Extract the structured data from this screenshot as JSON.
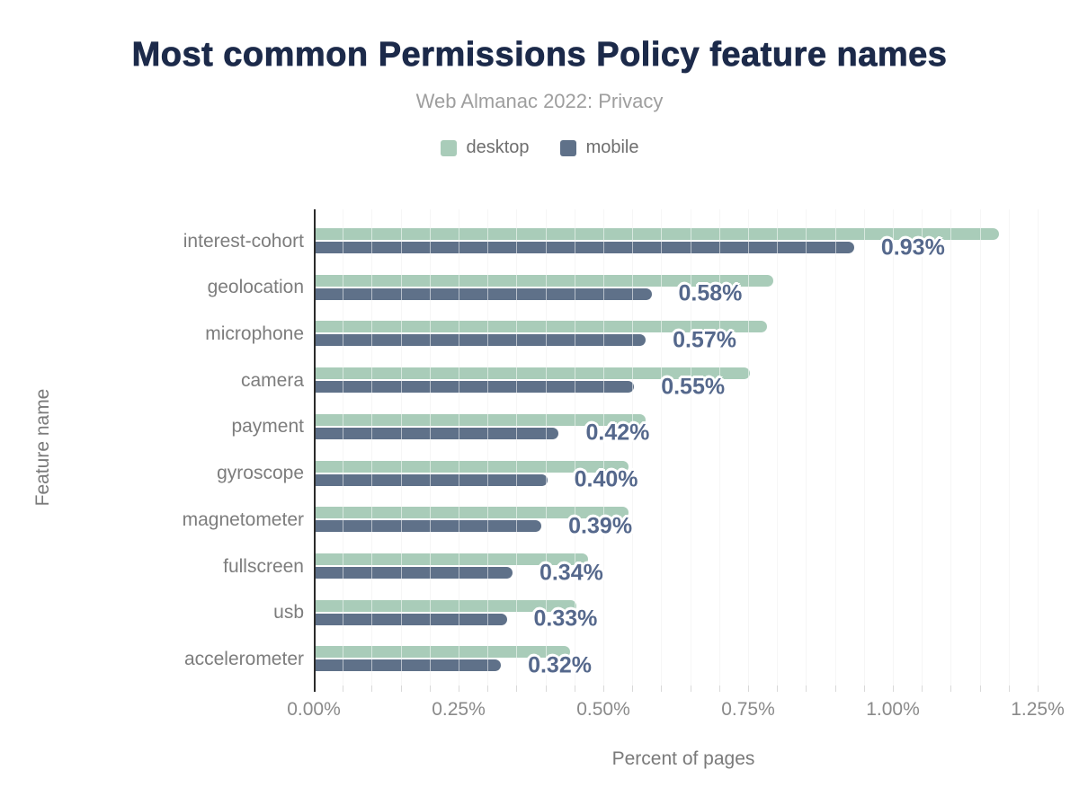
{
  "chart": {
    "title": "Most common Permissions Policy feature names",
    "subtitle": "Web Almanac 2022: Privacy",
    "xlabel": "Percent of pages",
    "ylabel": "Feature name"
  },
  "chart_data": {
    "type": "bar",
    "orientation": "horizontal",
    "title": "Most common Permissions Policy feature names",
    "subtitle": "Web Almanac 2022: Privacy",
    "xlabel": "Percent of pages",
    "ylabel": "Feature name",
    "categories": [
      "interest-cohort",
      "geolocation",
      "microphone",
      "camera",
      "payment",
      "gyroscope",
      "magnetometer",
      "fullscreen",
      "usb",
      "accelerometer"
    ],
    "series": [
      {
        "name": "desktop",
        "color": "#a9ccb9",
        "values": [
          1.18,
          0.79,
          0.78,
          0.75,
          0.57,
          0.54,
          0.54,
          0.47,
          0.45,
          0.44
        ]
      },
      {
        "name": "mobile",
        "color": "#5f7189",
        "values": [
          0.93,
          0.58,
          0.57,
          0.55,
          0.42,
          0.4,
          0.39,
          0.34,
          0.33,
          0.32
        ]
      }
    ],
    "data_labels": [
      "0.93%",
      "0.58%",
      "0.57%",
      "0.55%",
      "0.42%",
      "0.40%",
      "0.39%",
      "0.34%",
      "0.33%",
      "0.32%"
    ],
    "data_labels_series": "mobile",
    "x_ticks": [
      "0.00%",
      "0.25%",
      "0.50%",
      "0.75%",
      "1.00%",
      "1.25%"
    ],
    "x_tick_values": [
      0,
      0.25,
      0.5,
      0.75,
      1.0,
      1.25
    ],
    "xlim": [
      0,
      1.273
    ],
    "grid": "minor vertical gridlines every 0.05%",
    "legend_position": "top-center",
    "colors": {
      "desktop_bar": "#a9ccb9",
      "mobile_bar": "#5f7189",
      "data_label": "#55688c",
      "title": "#1c2a4a",
      "subtitle": "#9e9e9e",
      "axis_text": "#7d7d7d",
      "axis_line": "#2b2b2b"
    }
  }
}
